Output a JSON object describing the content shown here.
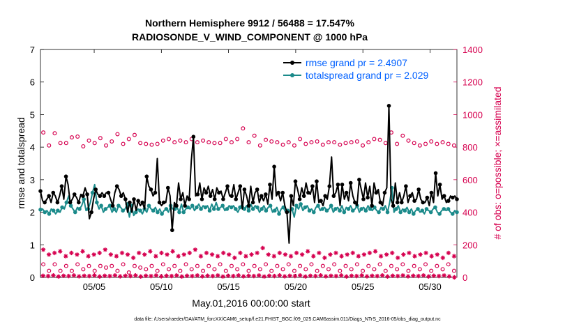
{
  "chart_data": {
    "type": "line",
    "title_line1": "Northern Hemisphere 9912 / 56488 = 17.547%",
    "title_line2": "RADIOSONDE_V_WIND_COMPONENT @ 1000 hPa",
    "xlabel": "May.01,2016 00:00:00 start",
    "ylabel_left": "rmse and totalspread",
    "ylabel_right": "# of obs: o=possible; ×=assimilated",
    "footnote": "data file: /Users/raeder/DAI/ATM_forcXX/CAM6_setup/f.e21.FHIST_BGC.f09_025.CAM6assim.011/Diags_NTrS_2016-05/obs_diag_output.nc",
    "x_range_days": [
      1,
      32
    ],
    "xticks": [
      {
        "day": 5,
        "label": "05/05"
      },
      {
        "day": 10,
        "label": "05/10"
      },
      {
        "day": 15,
        "label": "05/15"
      },
      {
        "day": 20,
        "label": "05/20"
      },
      {
        "day": 25,
        "label": "05/25"
      },
      {
        "day": 30,
        "label": "05/30"
      }
    ],
    "ylim_left": [
      0,
      7
    ],
    "yticks_left": [
      "0",
      "1",
      "2",
      "3",
      "4",
      "5",
      "6",
      "7"
    ],
    "ylim_right": [
      0,
      1400
    ],
    "yticks_right": [
      "0",
      "200",
      "400",
      "600",
      "800",
      "1000",
      "1200",
      "1400"
    ],
    "colors": {
      "rmse": "#000000",
      "spread": "#1a8a8a",
      "counts": "#d6004f",
      "legend_text": "#0060ff"
    },
    "legend": {
      "position": "top-right",
      "rmse_label": "rmse grand pr = 2.4907",
      "spread_label": "totalspread grand pr = 2.029"
    },
    "rmse_marker_every": 2,
    "spread_marker_every": 2,
    "rmse": [
      2.65,
      2.35,
      2.3,
      2.4,
      2.5,
      2.3,
      2.6,
      2.5,
      2.3,
      2.5,
      2.8,
      2.4,
      3.1,
      2.85,
      2.3,
      2.4,
      2.55,
      2.45,
      2.3,
      2.55,
      2.5,
      2.75,
      2.55,
      1.8,
      2.0,
      2.4,
      2.7,
      2.55,
      2.5,
      2.6,
      2.5,
      2.6,
      2.6,
      2.4,
      2.2,
      2.6,
      2.8,
      2.7,
      2.5,
      2.6,
      2.4,
      2.0,
      2.3,
      2.0,
      2.4,
      2.05,
      2.35,
      2.2,
      2.3,
      2.1,
      3.1,
      2.8,
      2.7,
      2.5,
      2.6,
      3.65,
      2.3,
      2.2,
      2.3,
      2.3,
      2.75,
      2.5,
      1.45,
      2.3,
      2.2,
      2.9,
      2.4,
      2.6,
      2.2,
      2.5,
      2.4,
      3.6,
      4.32,
      2.5,
      2.55,
      2.9,
      2.4,
      2.75,
      2.6,
      2.8,
      2.5,
      2.7,
      2.4,
      2.75,
      2.6,
      2.65,
      2.4,
      2.6,
      2.8,
      2.5,
      2.5,
      2.85,
      2.4,
      2.6,
      2.8,
      2.1,
      2.7,
      2.5,
      2.2,
      2.8,
      2.3,
      2.6,
      2.7,
      2.3,
      2.5,
      2.35,
      2.55,
      2.25,
      2.85,
      2.4,
      3.4,
      2.5,
      2.6,
      2.35,
      2.6,
      2.2,
      2.0,
      1.05,
      2.5,
      2.2,
      2.95,
      2.7,
      2.4,
      2.75,
      2.5,
      2.9,
      2.6,
      2.55,
      2.8,
      2.3,
      2.95,
      2.3,
      2.35,
      2.2,
      2.5,
      2.4,
      2.8,
      3.7,
      2.5,
      2.6,
      2.85,
      2.2,
      2.85,
      2.4,
      2.6,
      2.35,
      2.9,
      2.5,
      2.3,
      2.2,
      3.0,
      2.7,
      2.4,
      2.9,
      2.45,
      2.8,
      2.2,
      2.9,
      2.6,
      2.7,
      2.3,
      2.2,
      2.6,
      2.75,
      5.27,
      2.4,
      2.2,
      2.9,
      2.3,
      2.6,
      2.3,
      2.5,
      2.8,
      2.3,
      2.5,
      2.6,
      2.35,
      2.4,
      2.7,
      2.4,
      2.3,
      2.3,
      2.45,
      2.2,
      2.6,
      2.3,
      3.2,
      2.5,
      2.85,
      2.4,
      2.5,
      2.3,
      2.35,
      2.5,
      2.45,
      2.5,
      2.4
    ],
    "spread": [
      2.08,
      2.1,
      2.0,
      2.05,
      1.95,
      2.1,
      2.05,
      1.95,
      2.05,
      2.0,
      2.15,
      2.1,
      2.3,
      2.5,
      2.2,
      2.1,
      2.0,
      2.15,
      2.1,
      2.2,
      2.4,
      2.05,
      2.1,
      2.3,
      2.6,
      2.85,
      2.3,
      2.1,
      2.2,
      2.0,
      2.1,
      2.15,
      2.2,
      2.0,
      2.1,
      2.0,
      2.2,
      2.15,
      2.05,
      2.1,
      2.25,
      1.85,
      2.2,
      1.9,
      2.0,
      2.1,
      2.05,
      1.95,
      2.1,
      2.0,
      2.2,
      2.1,
      2.05,
      2.15,
      2.0,
      2.1,
      1.95,
      2.05,
      2.1,
      2.0,
      2.2,
      2.1,
      2.1,
      2.15,
      2.0,
      2.25,
      2.0,
      2.1,
      2.15,
      2.1,
      2.2,
      2.05,
      2.15,
      2.25,
      2.1,
      2.2,
      2.15,
      2.2,
      2.05,
      2.25,
      2.1,
      2.3,
      2.1,
      2.15,
      2.2,
      2.05,
      2.1,
      2.2,
      2.15,
      2.2,
      2.1,
      2.0,
      2.15,
      2.25,
      2.1,
      2.2,
      2.05,
      2.25,
      2.1,
      2.2,
      2.15,
      2.0,
      2.1,
      2.2,
      2.05,
      2.15,
      2.2,
      2.0,
      2.05,
      2.15,
      1.95,
      2.1,
      2.15,
      2.0,
      2.05,
      2.0,
      2.1,
      1.85,
      2.2,
      2.1,
      2.25,
      2.05,
      2.15,
      2.2,
      2.05,
      2.1,
      2.0,
      2.15,
      2.2,
      2.05,
      2.1,
      2.15,
      2.05,
      2.1,
      2.2,
      2.0,
      2.1,
      2.15,
      2.05,
      2.2,
      2.0,
      2.15,
      2.1,
      2.2,
      2.05,
      2.1,
      2.2,
      2.0,
      2.1,
      2.15,
      2.05,
      2.2,
      2.1,
      2.05,
      2.15,
      2.05,
      2.0,
      2.15,
      2.1,
      2.2,
      2.0,
      2.3,
      2.75,
      2.0,
      2.1,
      2.2,
      2.0,
      2.1,
      2.05,
      2.15,
      2.0,
      2.1,
      1.95,
      2.05,
      2.1,
      2.0,
      2.05,
      1.95,
      2.1,
      2.05,
      2.0,
      2.1,
      2.15,
      2.0,
      1.95,
      2.05,
      2.1,
      2.05,
      2.1,
      2.0,
      1.95,
      2.05,
      2.0
    ],
    "possible_high": [
      890,
      810,
      885,
      825,
      825,
      860,
      865,
      805,
      840,
      825,
      855,
      810,
      835,
      880,
      820,
      850,
      875,
      825,
      820,
      815,
      820,
      840,
      850,
      830,
      840,
      830,
      850,
      830,
      840,
      830,
      825,
      825,
      850,
      830,
      850,
      915,
      830,
      870,
      810,
      845,
      835,
      830,
      815,
      830,
      810,
      850,
      820,
      830,
      835,
      815,
      830,
      830,
      815,
      825,
      830,
      835,
      810,
      830,
      850,
      845,
      825,
      890,
      820,
      870,
      840,
      825,
      810,
      820,
      835,
      820,
      830,
      820,
      810
    ],
    "possible_low": [
      80,
      40,
      80,
      40,
      70,
      40,
      80,
      50,
      70,
      40,
      70,
      60,
      70,
      40,
      80,
      30,
      70,
      60,
      50,
      70,
      40,
      80,
      50,
      70,
      40,
      80,
      50,
      70,
      40,
      70,
      50,
      80,
      40,
      70,
      50,
      80,
      40,
      70,
      50,
      80,
      40,
      70,
      50,
      80,
      40,
      70,
      50,
      80,
      40,
      70,
      50,
      80,
      40,
      70,
      50,
      80,
      40,
      70,
      50,
      80,
      40,
      70,
      50,
      80,
      40,
      70,
      50,
      80,
      40,
      70,
      50,
      80,
      40
    ],
    "assimilated_high": [
      170,
      140,
      150,
      160,
      130,
      150,
      140,
      160,
      130,
      140,
      150,
      170,
      140,
      130,
      150,
      140,
      120,
      150,
      140,
      160,
      130,
      150,
      140,
      160,
      130,
      140,
      150,
      170,
      130,
      150,
      140,
      130,
      150,
      140,
      120,
      150,
      130,
      140,
      150,
      180,
      140,
      130,
      150,
      140,
      130,
      150,
      140,
      160,
      130,
      150,
      120,
      140,
      150,
      130,
      140,
      150,
      130,
      140,
      150,
      160,
      130,
      140,
      150,
      120,
      140,
      150,
      130,
      140,
      150,
      130,
      140,
      120,
      150,
      130
    ],
    "assimilated_low": [
      10,
      8,
      12,
      5,
      10,
      8,
      12,
      6,
      10,
      8,
      12,
      5,
      10,
      8,
      12,
      6,
      10,
      8,
      12,
      5,
      10,
      8,
      12,
      6,
      10,
      8,
      12,
      5,
      10,
      8,
      12,
      6,
      10,
      8,
      12,
      5,
      10,
      8,
      12,
      6,
      10,
      8,
      12,
      5,
      10,
      8,
      12,
      6,
      10,
      8,
      12,
      5,
      10,
      8,
      12,
      6,
      10,
      8,
      12,
      5,
      10,
      8,
      12,
      6,
      10,
      8,
      12,
      5,
      10,
      8,
      12,
      6,
      10,
      8,
      12,
      5,
      10,
      8,
      12,
      6,
      0
    ]
  }
}
